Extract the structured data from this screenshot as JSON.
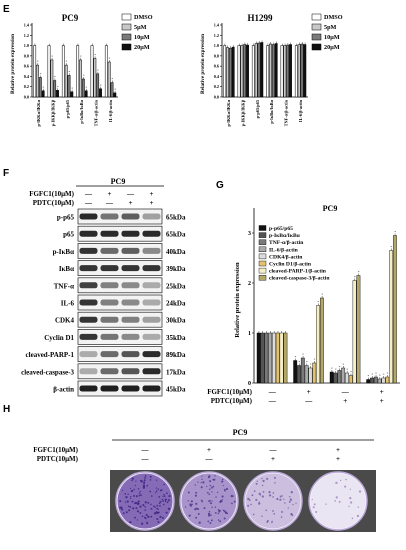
{
  "panel_letters": {
    "E": "E",
    "F": "F",
    "G": "G",
    "H": "H"
  },
  "chart_data": [
    {
      "id": "E-PC9",
      "type": "bar",
      "title": "PC9",
      "ylabel": "Relative protein expression",
      "ylim": [
        0,
        1.4
      ],
      "yticks": [
        "0.0",
        "0.2",
        "0.4",
        "0.6",
        "0.8",
        "1.0",
        "1.2",
        "1.4"
      ],
      "categories": [
        "p-IKKα/IKKα",
        "p-IKKβ/IKKβ",
        "p-p65/p65",
        "p-IκBα/IκBα",
        "TNF-α/β-actin",
        "IL-6/β-actin"
      ],
      "series": [
        {
          "name": "DMSO",
          "color": "#ffffff",
          "values": [
            1.0,
            1.0,
            1.0,
            1.0,
            1.0,
            1.0
          ]
        },
        {
          "name": "5μM",
          "color": "#c8c8c8",
          "values": [
            0.62,
            0.72,
            0.62,
            0.72,
            0.75,
            0.68
          ]
        },
        {
          "name": "10μM",
          "color": "#7a7a7a",
          "values": [
            0.38,
            0.32,
            0.42,
            0.35,
            0.45,
            0.28
          ]
        },
        {
          "name": "20μM",
          "color": "#111111",
          "values": [
            0.12,
            0.13,
            0.1,
            0.12,
            0.16,
            0.08
          ]
        }
      ],
      "legend": "top-right"
    },
    {
      "id": "E-H1299",
      "type": "bar",
      "title": "H1299",
      "ylabel": "Relative protein expression",
      "ylim": [
        0,
        1.4
      ],
      "yticks": [
        "0.0",
        "0.2",
        "0.4",
        "0.6",
        "0.8",
        "1.0",
        "1.2",
        "1.4"
      ],
      "categories": [
        "p-IKKα/IKKα",
        "p-IKKβ/IKKβ",
        "p-p65/p65",
        "p-IκBα/IκBα",
        "TNF-α/β-actin",
        "IL-6/β-actin"
      ],
      "series": [
        {
          "name": "DMSO",
          "color": "#ffffff",
          "values": [
            1.0,
            1.0,
            1.0,
            1.0,
            1.0,
            1.0
          ]
        },
        {
          "name": "5pM",
          "color": "#c8c8c8",
          "values": [
            0.96,
            1.0,
            1.04,
            1.03,
            1.0,
            1.02
          ]
        },
        {
          "name": "10μM",
          "color": "#7a7a7a",
          "values": [
            0.95,
            1.02,
            1.05,
            1.02,
            1.01,
            1.03
          ]
        },
        {
          "name": "20μM",
          "color": "#111111",
          "values": [
            0.97,
            1.01,
            1.06,
            1.04,
            1.02,
            1.02
          ]
        }
      ],
      "legend": "top-right"
    },
    {
      "id": "G-PC9",
      "type": "bar",
      "title": "PC9",
      "ylabel": "Relative protein expression",
      "ylim": [
        0,
        3.5
      ],
      "yticks": [
        "0",
        "1",
        "2",
        "3"
      ],
      "groups": 4,
      "series": [
        {
          "name": "p-p65/p65",
          "color": "#111111",
          "values": [
            1.0,
            0.45,
            0.22,
            0.07
          ]
        },
        {
          "name": "p-IκBα/IκBα",
          "color": "#555555",
          "values": [
            1.0,
            0.35,
            0.2,
            0.1
          ]
        },
        {
          "name": "TNF-α/β-actin",
          "color": "#7a7a7a",
          "values": [
            1.0,
            0.5,
            0.25,
            0.12
          ]
        },
        {
          "name": "IL-6/β-actin",
          "color": "#aaaaaa",
          "values": [
            1.0,
            0.35,
            0.3,
            0.08
          ]
        },
        {
          "name": "CDK4/β-actin",
          "color": "#dcdcdc",
          "values": [
            1.0,
            0.3,
            0.2,
            0.1
          ]
        },
        {
          "name": "Cyclin D1/β-actin",
          "color": "#e3c16f",
          "values": [
            1.0,
            0.4,
            0.15,
            0.12
          ]
        },
        {
          "name": "cleaved-PARP-1/β-actin",
          "color": "#f4efc8",
          "values": [
            1.0,
            1.55,
            2.05,
            2.65
          ]
        },
        {
          "name": "cleaved-caspase-3/β-actin",
          "color": "#b3a86a",
          "values": [
            1.0,
            1.7,
            2.15,
            2.95
          ]
        }
      ],
      "treatment_rows": [
        {
          "label": "FGFC1(10μM)",
          "signs": [
            "—",
            "+",
            "—",
            "+"
          ]
        },
        {
          "label": "PDTC(10μM)",
          "signs": [
            "—",
            "—",
            "+",
            "+"
          ]
        }
      ],
      "legend": "top-left"
    }
  ],
  "western": {
    "cell_line": "PC9",
    "treatment_rows": [
      {
        "label": "FGFC1(10μM)",
        "signs": [
          "—",
          "+",
          "—",
          "+"
        ]
      },
      {
        "label": "PDTC(10μM)",
        "signs": [
          "—",
          "—",
          "+",
          "+"
        ]
      }
    ],
    "bands": [
      {
        "protein": "p-p65",
        "kda": "65kDa",
        "intensity": [
          0.9,
          0.55,
          0.65,
          0.35
        ]
      },
      {
        "protein": "p65",
        "kda": "65kDa",
        "intensity": [
          0.9,
          0.9,
          0.9,
          0.9
        ]
      },
      {
        "protein": "p-IκBα",
        "kda": "40kDa",
        "intensity": [
          0.85,
          0.6,
          0.65,
          0.45
        ]
      },
      {
        "protein": "IκBα",
        "kda": "39kDa",
        "intensity": [
          0.85,
          0.85,
          0.85,
          0.85
        ]
      },
      {
        "protein": "TNF-α",
        "kda": "25kDa",
        "intensity": [
          0.8,
          0.5,
          0.45,
          0.3
        ]
      },
      {
        "protein": "IL-6",
        "kda": "24kDa",
        "intensity": [
          0.85,
          0.5,
          0.45,
          0.3
        ]
      },
      {
        "protein": "CDK4",
        "kda": "30kDa",
        "intensity": [
          0.85,
          0.55,
          0.5,
          0.35
        ]
      },
      {
        "protein": "Cyclin D1",
        "kda": "35kDa",
        "intensity": [
          0.85,
          0.55,
          0.45,
          0.3
        ]
      },
      {
        "protein": "cleaved-PARP-1",
        "kda": "89kDa",
        "intensity": [
          0.3,
          0.6,
          0.7,
          0.9
        ]
      },
      {
        "protein": "cleaved-caspase-3",
        "kda": "17kDa",
        "intensity": [
          0.3,
          0.6,
          0.7,
          0.9
        ]
      },
      {
        "protein": "β-actin",
        "kda": "45kDa",
        "intensity": [
          0.95,
          0.95,
          0.95,
          0.95
        ]
      }
    ]
  },
  "colony": {
    "cell_line": "PC9",
    "treatment_rows": [
      {
        "label": "FGFC1(10μM)",
        "signs": [
          "—",
          "+",
          "—",
          "+"
        ]
      },
      {
        "label": "PDTC(10μM)",
        "signs": [
          "—",
          "—",
          "+",
          "+"
        ]
      }
    ],
    "density": [
      0.95,
      0.65,
      0.35,
      0.08
    ],
    "plate_color": "#6a4aa6"
  }
}
